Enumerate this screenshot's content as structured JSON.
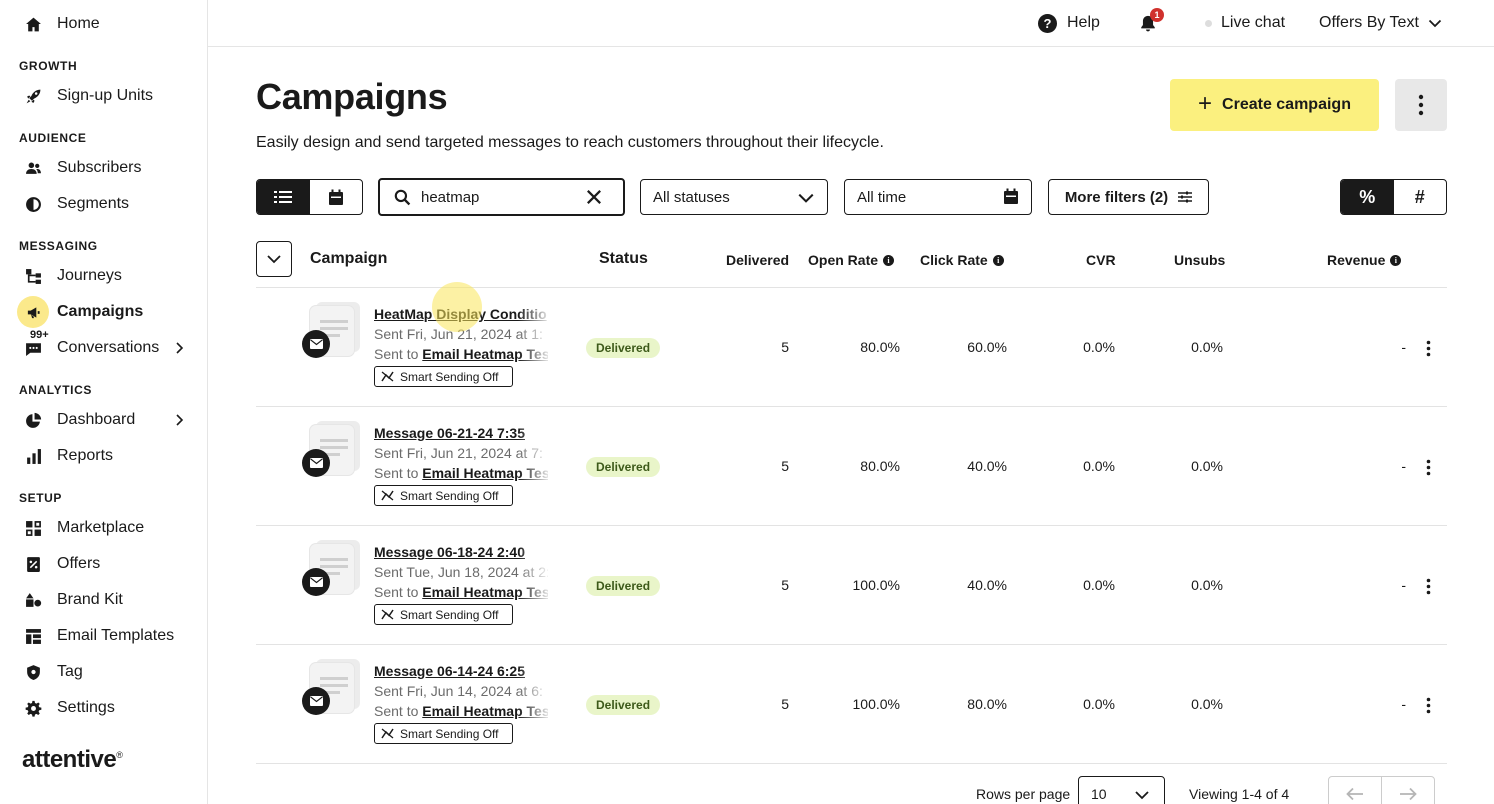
{
  "sidebar": {
    "home": "Home",
    "sections": {
      "growth": "GROWTH",
      "audience": "AUDIENCE",
      "messaging": "MESSAGING",
      "analytics": "ANALYTICS",
      "setup": "SETUP"
    },
    "items": {
      "signup_units": "Sign-up Units",
      "subscribers": "Subscribers",
      "segments": "Segments",
      "journeys": "Journeys",
      "campaigns": "Campaigns",
      "conversations": "Conversations",
      "conversations_badge": "99+",
      "dashboard": "Dashboard",
      "reports": "Reports",
      "marketplace": "Marketplace",
      "offers": "Offers",
      "brand_kit": "Brand Kit",
      "email_templates": "Email Templates",
      "tag": "Tag",
      "settings": "Settings"
    },
    "logo": "attentive",
    "logo_mark": "®"
  },
  "topbar": {
    "help": "Help",
    "notifications_count": "1",
    "live_chat": "Live chat",
    "account": "Offers By Text"
  },
  "page": {
    "title": "Campaigns",
    "subtitle": "Easily design and send targeted messages to reach customers throughout their lifecycle.",
    "create_button": "Create campaign"
  },
  "filters": {
    "search_value": "heatmap",
    "status": "All statuses",
    "date": "All time",
    "more_filters": "More filters (2)",
    "unit_percent": "%",
    "unit_count": "#"
  },
  "table": {
    "headers": {
      "campaign": "Campaign",
      "status": "Status",
      "delivered": "Delivered",
      "open_rate": "Open Rate",
      "click_rate": "Click Rate",
      "cvr": "CVR",
      "unsubs": "Unsubs",
      "revenue": "Revenue"
    },
    "sent_to_prefix": "Sent to",
    "smart_sending": "Smart Sending Off",
    "rows": [
      {
        "name": "HeatMap Display Conditio",
        "sent": "Sent Fri, Jun 21, 2024 at 1:",
        "segment": "Email Heatmap Tes",
        "status": "Delivered",
        "delivered": "5",
        "open_rate": "80.0%",
        "click_rate": "60.0%",
        "cvr": "0.0%",
        "unsubs": "0.0%",
        "revenue": "-"
      },
      {
        "name": "Message 06-21-24 7:35",
        "sent": "Sent Fri, Jun 21, 2024 at 7:",
        "segment": "Email Heatmap Tes",
        "status": "Delivered",
        "delivered": "5",
        "open_rate": "80.0%",
        "click_rate": "40.0%",
        "cvr": "0.0%",
        "unsubs": "0.0%",
        "revenue": "-"
      },
      {
        "name": "Message 06-18-24 2:40",
        "sent": "Sent Tue, Jun 18, 2024 at 2:",
        "segment": "Email Heatmap Tes",
        "status": "Delivered",
        "delivered": "5",
        "open_rate": "100.0%",
        "click_rate": "40.0%",
        "cvr": "0.0%",
        "unsubs": "0.0%",
        "revenue": "-"
      },
      {
        "name": "Message 06-14-24 6:25",
        "sent": "Sent Fri, Jun 14, 2024 at 6:",
        "segment": "Email Heatmap Tes",
        "status": "Delivered",
        "delivered": "5",
        "open_rate": "100.0%",
        "click_rate": "80.0%",
        "cvr": "0.0%",
        "unsubs": "0.0%",
        "revenue": "-"
      }
    ]
  },
  "footer": {
    "rows_per_page_label": "Rows per page",
    "rows_per_page": "10",
    "viewing": "Viewing 1-4 of 4"
  },
  "colors": {
    "accent_yellow": "#fbf07f",
    "active_nav": "#fbe98b",
    "status_pill_bg": "#e9f5c9",
    "notification_red": "#d0312d"
  }
}
